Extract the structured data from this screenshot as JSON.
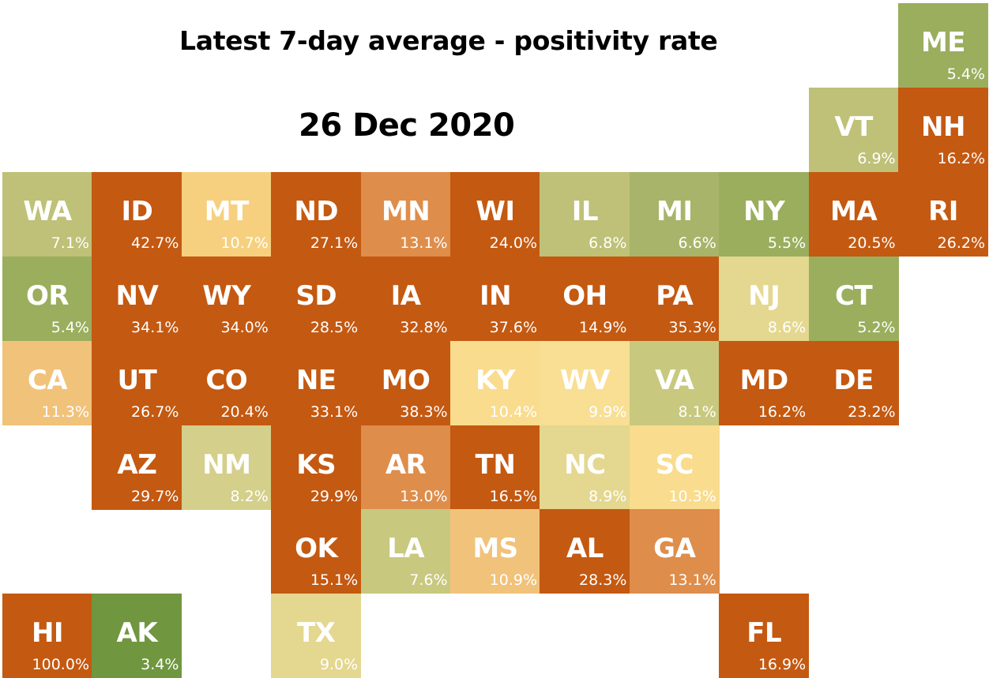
{
  "title": "Latest 7-day average - positivity rate",
  "date": "26 Dec 2020",
  "colors": {
    "red": "#c45911",
    "orange": "#de8d4b",
    "orange_light": "#f1c27a",
    "pale_orange": "#f6d07f",
    "yellow": "#f9dc8d",
    "yellow_pale": "#f8df94",
    "khaki": "#e4d78f",
    "khaki_green": "#d4cf8a",
    "olive_light": "#c8c87f",
    "olive": "#bec177",
    "olive_mid": "#a8b46a",
    "green": "#9aae5e",
    "green_dark": "#70963f"
  },
  "states": [
    {
      "abbr": "ME",
      "value": "5.4%",
      "color": "green",
      "col": 10,
      "row": 0
    },
    {
      "abbr": "VT",
      "value": "6.9%",
      "color": "olive",
      "col": 9,
      "row": 1
    },
    {
      "abbr": "NH",
      "value": "16.2%",
      "color": "red",
      "col": 10,
      "row": 1
    },
    {
      "abbr": "WA",
      "value": "7.1%",
      "color": "olive",
      "col": 0,
      "row": 2
    },
    {
      "abbr": "ID",
      "value": "42.7%",
      "color": "red",
      "col": 1,
      "row": 2
    },
    {
      "abbr": "MT",
      "value": "10.7%",
      "color": "pale_orange",
      "col": 2,
      "row": 2
    },
    {
      "abbr": "ND",
      "value": "27.1%",
      "color": "red",
      "col": 3,
      "row": 2
    },
    {
      "abbr": "MN",
      "value": "13.1%",
      "color": "orange",
      "col": 4,
      "row": 2
    },
    {
      "abbr": "WI",
      "value": "24.0%",
      "color": "red",
      "col": 5,
      "row": 2
    },
    {
      "abbr": "IL",
      "value": "6.8%",
      "color": "olive",
      "col": 6,
      "row": 2
    },
    {
      "abbr": "MI",
      "value": "6.6%",
      "color": "olive_mid",
      "col": 7,
      "row": 2
    },
    {
      "abbr": "NY",
      "value": "5.5%",
      "color": "green",
      "col": 8,
      "row": 2
    },
    {
      "abbr": "MA",
      "value": "20.5%",
      "color": "red",
      "col": 9,
      "row": 2
    },
    {
      "abbr": "RI",
      "value": "26.2%",
      "color": "red",
      "col": 10,
      "row": 2
    },
    {
      "abbr": "OR",
      "value": "5.4%",
      "color": "green",
      "col": 0,
      "row": 3
    },
    {
      "abbr": "NV",
      "value": "34.1%",
      "color": "red",
      "col": 1,
      "row": 3
    },
    {
      "abbr": "WY",
      "value": "34.0%",
      "color": "red",
      "col": 2,
      "row": 3
    },
    {
      "abbr": "SD",
      "value": "28.5%",
      "color": "red",
      "col": 3,
      "row": 3
    },
    {
      "abbr": "IA",
      "value": "32.8%",
      "color": "red",
      "col": 4,
      "row": 3
    },
    {
      "abbr": "IN",
      "value": "37.6%",
      "color": "red",
      "col": 5,
      "row": 3
    },
    {
      "abbr": "OH",
      "value": "14.9%",
      "color": "red",
      "col": 6,
      "row": 3
    },
    {
      "abbr": "PA",
      "value": "35.3%",
      "color": "red",
      "col": 7,
      "row": 3
    },
    {
      "abbr": "NJ",
      "value": "8.6%",
      "color": "khaki",
      "col": 8,
      "row": 3
    },
    {
      "abbr": "CT",
      "value": "5.2%",
      "color": "green",
      "col": 9,
      "row": 3
    },
    {
      "abbr": "CA",
      "value": "11.3%",
      "color": "orange_light",
      "col": 0,
      "row": 4
    },
    {
      "abbr": "UT",
      "value": "26.7%",
      "color": "red",
      "col": 1,
      "row": 4
    },
    {
      "abbr": "CO",
      "value": "20.4%",
      "color": "red",
      "col": 2,
      "row": 4
    },
    {
      "abbr": "NE",
      "value": "33.1%",
      "color": "red",
      "col": 3,
      "row": 4
    },
    {
      "abbr": "MO",
      "value": "38.3%",
      "color": "red",
      "col": 4,
      "row": 4
    },
    {
      "abbr": "KY",
      "value": "10.4%",
      "color": "yellow",
      "col": 5,
      "row": 4
    },
    {
      "abbr": "WV",
      "value": "9.9%",
      "color": "yellow_pale",
      "col": 6,
      "row": 4
    },
    {
      "abbr": "VA",
      "value": "8.1%",
      "color": "olive_light",
      "col": 7,
      "row": 4
    },
    {
      "abbr": "MD",
      "value": "16.2%",
      "color": "red",
      "col": 8,
      "row": 4
    },
    {
      "abbr": "DE",
      "value": "23.2%",
      "color": "red",
      "col": 9,
      "row": 4
    },
    {
      "abbr": "AZ",
      "value": "29.7%",
      "color": "red",
      "col": 1,
      "row": 5
    },
    {
      "abbr": "NM",
      "value": "8.2%",
      "color": "khaki_green",
      "col": 2,
      "row": 5
    },
    {
      "abbr": "KS",
      "value": "29.9%",
      "color": "red",
      "col": 3,
      "row": 5
    },
    {
      "abbr": "AR",
      "value": "13.0%",
      "color": "orange",
      "col": 4,
      "row": 5
    },
    {
      "abbr": "TN",
      "value": "16.5%",
      "color": "red",
      "col": 5,
      "row": 5
    },
    {
      "abbr": "NC",
      "value": "8.9%",
      "color": "khaki",
      "col": 6,
      "row": 5
    },
    {
      "abbr": "SC",
      "value": "10.3%",
      "color": "yellow",
      "col": 7,
      "row": 5
    },
    {
      "abbr": "OK",
      "value": "15.1%",
      "color": "red",
      "col": 3,
      "row": 6
    },
    {
      "abbr": "LA",
      "value": "7.6%",
      "color": "olive_light",
      "col": 4,
      "row": 6
    },
    {
      "abbr": "MS",
      "value": "10.9%",
      "color": "orange_light",
      "col": 5,
      "row": 6
    },
    {
      "abbr": "AL",
      "value": "28.3%",
      "color": "red",
      "col": 6,
      "row": 6
    },
    {
      "abbr": "GA",
      "value": "13.1%",
      "color": "orange",
      "col": 7,
      "row": 6
    },
    {
      "abbr": "HI",
      "value": "100.0%",
      "color": "red",
      "col": 0,
      "row": 7
    },
    {
      "abbr": "AK",
      "value": "3.4%",
      "color": "green_dark",
      "col": 1,
      "row": 7
    },
    {
      "abbr": "TX",
      "value": "9.0%",
      "color": "khaki",
      "col": 3,
      "row": 7
    },
    {
      "abbr": "FL",
      "value": "16.9%",
      "color": "red",
      "col": 8,
      "row": 7
    }
  ]
}
